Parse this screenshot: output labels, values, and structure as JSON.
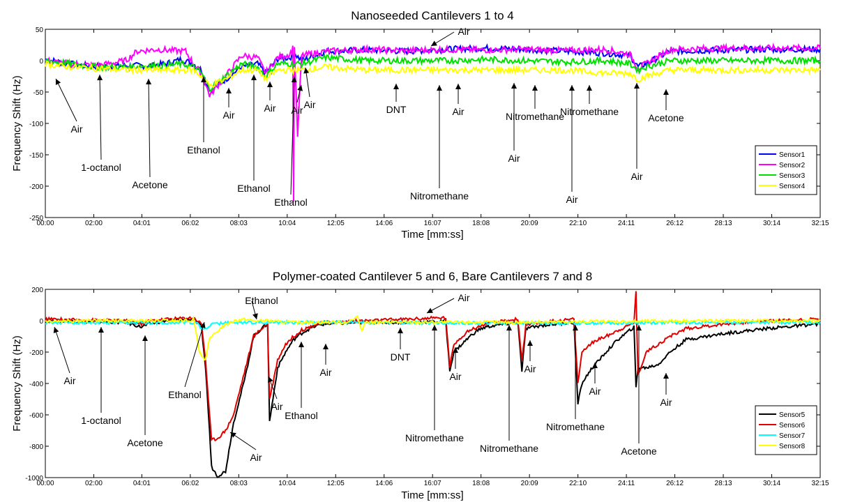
{
  "chart_data": [
    {
      "type": "line",
      "title": "Nanoseeded Cantilevers 1 to 4",
      "xlabel": "Time [mm:ss]",
      "ylabel": "Frequency Shift (Hz)",
      "xlim": [
        0,
        1935
      ],
      "ylim": [
        -250,
        50
      ],
      "xticks": [
        0,
        121,
        241,
        362,
        483,
        604,
        725,
        846,
        967,
        1088,
        1209,
        1330,
        1451,
        1572,
        1693,
        1814,
        1935
      ],
      "xtick_labels": [
        "00:00",
        "02:00",
        "04:01",
        "06:02",
        "08:03",
        "10:04",
        "12:05",
        "14:06",
        "16:07",
        "18:08",
        "20:09",
        "22:10",
        "24:11",
        "26:12",
        "28:13",
        "30:14",
        "32:15"
      ],
      "yticks": [
        -250,
        -200,
        -150,
        -100,
        -50,
        0,
        50
      ],
      "legend_position": "lower-right",
      "series": [
        {
          "name": "Sensor1",
          "color": "#0000ff",
          "x": [
            0,
            60,
            130,
            200,
            260,
            300,
            340,
            370,
            390,
            410,
            450,
            490,
            530,
            550,
            580,
            610,
            625,
            640,
            700,
            800,
            900,
            1000,
            1100,
            1200,
            1300,
            1400,
            1460,
            1480,
            1500,
            1560,
            1700,
            1800,
            1935
          ],
          "y": [
            2,
            -5,
            -10,
            -8,
            -8,
            -5,
            2,
            -5,
            -15,
            -48,
            -30,
            -10,
            -5,
            -20,
            3,
            5,
            10,
            0,
            15,
            17,
            15,
            18,
            20,
            18,
            15,
            12,
            8,
            -10,
            -5,
            15,
            17,
            18,
            18
          ]
        },
        {
          "name": "Sensor2",
          "color": "#ff00ff",
          "x": [
            0,
            60,
            130,
            200,
            230,
            280,
            320,
            350,
            370,
            390,
            410,
            450,
            490,
            530,
            550,
            580,
            610,
            618,
            620,
            622,
            630,
            640,
            700,
            800,
            900,
            1000,
            1100,
            1200,
            1300,
            1400,
            1460,
            1480,
            1500,
            1560,
            1700,
            1800,
            1935
          ],
          "y": [
            0,
            -5,
            -8,
            0,
            15,
            18,
            16,
            15,
            -5,
            -20,
            -55,
            -25,
            8,
            5,
            -20,
            5,
            10,
            20,
            -220,
            20,
            -120,
            8,
            15,
            18,
            16,
            18,
            17,
            18,
            16,
            18,
            10,
            -12,
            -5,
            18,
            20,
            20,
            20
          ]
        },
        {
          "name": "Sensor3",
          "color": "#00e000",
          "x": [
            0,
            60,
            130,
            200,
            260,
            300,
            340,
            370,
            390,
            410,
            450,
            490,
            530,
            550,
            580,
            610,
            640,
            700,
            800,
            900,
            1000,
            1100,
            1200,
            1300,
            1400,
            1460,
            1480,
            1500,
            1560,
            1700,
            1800,
            1935
          ],
          "y": [
            0,
            -5,
            -10,
            -10,
            -8,
            -8,
            -5,
            -10,
            -20,
            -45,
            -25,
            -5,
            -10,
            -25,
            -5,
            -5,
            -5,
            5,
            0,
            0,
            0,
            2,
            0,
            -2,
            0,
            -5,
            -15,
            -10,
            0,
            0,
            0,
            0
          ]
        },
        {
          "name": "Sensor4",
          "color": "#ffff00",
          "x": [
            0,
            60,
            130,
            200,
            260,
            300,
            340,
            370,
            390,
            410,
            450,
            490,
            530,
            550,
            580,
            610,
            640,
            700,
            800,
            900,
            1000,
            1100,
            1200,
            1300,
            1400,
            1460,
            1480,
            1500,
            1560,
            1700,
            1800,
            1935
          ],
          "y": [
            -5,
            -10,
            -12,
            -15,
            -15,
            -15,
            -15,
            -15,
            -25,
            -40,
            -30,
            -15,
            -15,
            -30,
            -15,
            -15,
            -15,
            -10,
            -15,
            -15,
            -15,
            -15,
            -15,
            -15,
            -20,
            -20,
            -30,
            -25,
            -15,
            -15,
            -15,
            -15
          ]
        }
      ],
      "annotations": [
        {
          "text": "Air",
          "x": 6,
          "y": -15
        },
        {
          "text": "1-octanol",
          "x": 116,
          "y": -10
        },
        {
          "text": "Acetone",
          "x": 236,
          "y": -15
        },
        {
          "text": "Ethanol",
          "x": 365,
          "y": -15
        },
        {
          "text": "Air",
          "x": 397,
          "y": -40
        },
        {
          "text": "Air",
          "x": 455,
          "y": -30
        },
        {
          "text": "Ethanol",
          "x": 499,
          "y": -20
        },
        {
          "text": "Air",
          "x": 587,
          "y": -28
        },
        {
          "text": "Ethanol",
          "x": 610,
          "y": -20
        },
        {
          "text": "Air",
          "x": 632,
          "y": -6
        },
        {
          "text": "DNT",
          "x": 845,
          "y": -17
        },
        {
          "text": "Air",
          "x": 962,
          "y": -17
        },
        {
          "text": "Nitromethane",
          "x": 1013,
          "y": -20
        },
        {
          "text": "Air",
          "x": 1058,
          "y": -18
        },
        {
          "text": "Nitromethane",
          "x": 1118,
          "y": -17
        },
        {
          "text": "Air",
          "x": 1179,
          "y": -18
        },
        {
          "text": "Nitromethane",
          "x": 1267,
          "y": -18
        },
        {
          "text": "Air",
          "x": 1305,
          "y": -18
        },
        {
          "text": "Acetone",
          "x": 1349,
          "y": -17
        },
        {
          "text": "Air",
          "x": 1422,
          "y": -22
        }
      ]
    },
    {
      "type": "line",
      "title": "Polymer-coated Cantilever 5 and 6,  Bare Cantilevers 7 and 8",
      "xlabel": "Time [mm:ss]",
      "ylabel": "Frequency Shift (Hz)",
      "xlim": [
        0,
        1935
      ],
      "ylim": [
        -1000,
        200
      ],
      "xticks": [
        0,
        121,
        241,
        362,
        483,
        604,
        725,
        846,
        967,
        1088,
        1209,
        1330,
        1451,
        1572,
        1693,
        1814,
        1935
      ],
      "xtick_labels": [
        "00:00",
        "02:00",
        "04:01",
        "06:02",
        "08:03",
        "10:04",
        "12:05",
        "14:06",
        "16:07",
        "18:08",
        "20:09",
        "22:10",
        "24:11",
        "26:12",
        "28:13",
        "30:14",
        "32:15"
      ],
      "yticks": [
        -1000,
        -800,
        -600,
        -400,
        -200,
        0,
        200
      ],
      "legend_position": "lower-right",
      "series": [
        {
          "name": "Sensor5",
          "color": "#000000",
          "x": [
            0,
            100,
            200,
            240,
            260,
            300,
            340,
            370,
            390,
            400,
            410,
            415,
            430,
            450,
            470,
            500,
            520,
            540,
            550,
            555,
            560,
            580,
            600,
            620,
            640,
            660,
            680,
            700,
            800,
            900,
            1000,
            1010,
            1020,
            1040,
            1060,
            1080,
            1100,
            1150,
            1180,
            1190,
            1200,
            1240,
            1280,
            1320,
            1330,
            1340,
            1360,
            1380,
            1400,
            1430,
            1450,
            1470,
            1475,
            1480,
            1500,
            1530,
            1560,
            1600,
            1700,
            1800,
            1935
          ],
          "y": [
            0,
            -5,
            -10,
            -40,
            -20,
            0,
            5,
            10,
            -40,
            -300,
            -700,
            -930,
            -990,
            -960,
            -650,
            -350,
            -100,
            -50,
            -30,
            -20,
            -640,
            -300,
            -200,
            -120,
            -80,
            -50,
            -30,
            -20,
            -10,
            -10,
            -5,
            -320,
            -200,
            -150,
            -100,
            -60,
            -40,
            -20,
            -10,
            -320,
            -50,
            -30,
            -20,
            -10,
            -530,
            -400,
            -320,
            -260,
            -200,
            -120,
            -80,
            -40,
            -430,
            -300,
            -300,
            -280,
            -200,
            -120,
            -80,
            -50,
            -20
          ]
        },
        {
          "name": "Sensor6",
          "color": "#e00000",
          "x": [
            0,
            100,
            200,
            240,
            260,
            300,
            340,
            370,
            390,
            400,
            410,
            415,
            430,
            450,
            470,
            500,
            520,
            540,
            550,
            555,
            560,
            580,
            600,
            620,
            640,
            660,
            680,
            700,
            800,
            900,
            1000,
            1010,
            1020,
            1040,
            1060,
            1080,
            1100,
            1150,
            1180,
            1190,
            1200,
            1240,
            1280,
            1320,
            1330,
            1340,
            1360,
            1380,
            1400,
            1430,
            1450,
            1470,
            1475,
            1480,
            1500,
            1530,
            1560,
            1600,
            1700,
            1800,
            1935
          ],
          "y": [
            10,
            5,
            0,
            -20,
            0,
            10,
            15,
            20,
            -20,
            -250,
            -600,
            -760,
            -750,
            -700,
            -600,
            -300,
            -100,
            -50,
            -30,
            -20,
            -500,
            -250,
            -150,
            -100,
            -60,
            -40,
            -20,
            -10,
            0,
            10,
            20,
            -300,
            -150,
            -100,
            -60,
            -40,
            -20,
            0,
            10,
            -250,
            -30,
            -10,
            0,
            10,
            -400,
            -200,
            -150,
            -120,
            -100,
            -60,
            -40,
            -10,
            190,
            -350,
            -200,
            -150,
            -100,
            -50,
            -20,
            0,
            10
          ]
        },
        {
          "name": "Sensor7",
          "color": "#00ffff",
          "x": [
            0,
            200,
            380,
            390,
            420,
            480,
            600,
            800,
            1000,
            1200,
            1400,
            1600,
            1800,
            1935
          ],
          "y": [
            -10,
            -15,
            -10,
            -60,
            -20,
            -10,
            -10,
            -10,
            -15,
            -15,
            -15,
            -10,
            -10,
            -10
          ]
        },
        {
          "name": "Sensor8",
          "color": "#ffff00",
          "x": [
            0,
            200,
            360,
            370,
            385,
            400,
            410,
            440,
            470,
            500,
            520,
            560,
            600,
            700,
            750,
            780,
            790,
            800,
            1000,
            1200,
            1400,
            1600,
            1800,
            1935
          ],
          "y": [
            0,
            0,
            0,
            10,
            -200,
            -250,
            -120,
            -40,
            0,
            10,
            0,
            0,
            -10,
            -10,
            -10,
            20,
            -60,
            -10,
            -10,
            -10,
            -5,
            0,
            0,
            0
          ]
        }
      ],
      "annotations": [
        {
          "text": "Air",
          "x": 6,
          "y": -30
        },
        {
          "text": "1-octanol",
          "x": 116,
          "y": -20
        },
        {
          "text": "Acetone",
          "x": 236,
          "y": -50
        },
        {
          "text": "Ethanol",
          "x": 362,
          "y": -20
        },
        {
          "text": "Ethanol",
          "x": 565,
          "y": 20
        },
        {
          "text": "Air",
          "x": 420,
          "y": -720
        },
        {
          "text": "Air",
          "x": 538,
          "y": -490
        },
        {
          "text": "Ethanol",
          "x": 623,
          "y": -160
        },
        {
          "text": "Air",
          "x": 688,
          "y": -120
        },
        {
          "text": "DNT",
          "x": 841,
          "y": -20
        },
        {
          "text": "Air",
          "x": 942,
          "y": 20
        },
        {
          "text": "Nitromethane",
          "x": 970,
          "y": -30
        },
        {
          "text": "Air",
          "x": 1005,
          "y": -240
        },
        {
          "text": "Nitromethane",
          "x": 1127,
          "y": -30
        },
        {
          "text": "Air",
          "x": 1161,
          "y": -150
        },
        {
          "text": "Nitromethane",
          "x": 1300,
          "y": -30
        },
        {
          "text": "Air",
          "x": 1322,
          "y": -300
        },
        {
          "text": "Acetone",
          "x": 1446,
          "y": -30
        },
        {
          "text": "Air",
          "x": 1495,
          "y": -270
        }
      ]
    }
  ]
}
